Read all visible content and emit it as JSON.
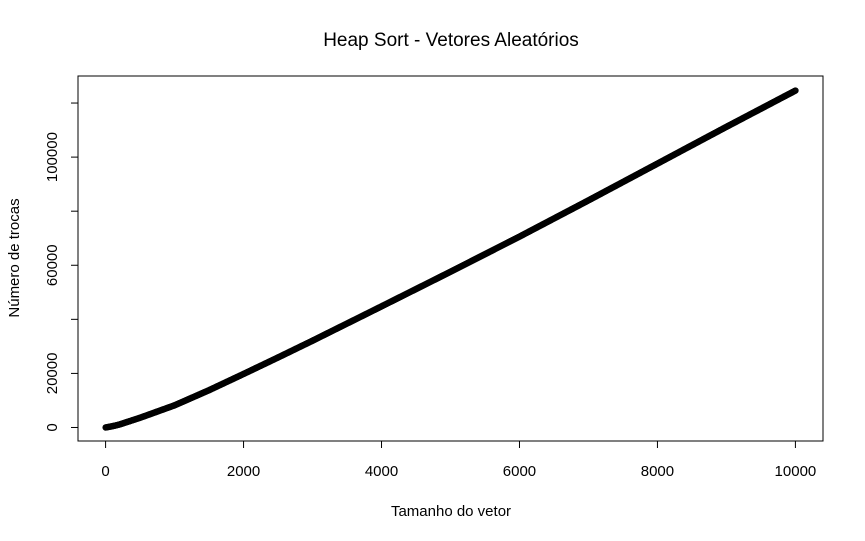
{
  "chart_data": {
    "type": "scatter",
    "title": "Heap Sort - Vetores Aleatórios",
    "xlabel": "Tamanho do vetor",
    "ylabel": "Número de trocas",
    "xlim": [
      -400,
      10400
    ],
    "ylim": [
      -5000,
      130000
    ],
    "xticks": [
      0,
      2000,
      4000,
      6000,
      8000,
      10000
    ],
    "yticks": [
      0,
      20000,
      40000,
      60000,
      80000,
      100000,
      120000
    ],
    "ytick_labels": [
      "0",
      "20000",
      "",
      "60000",
      "",
      "100000",
      ""
    ],
    "x_range": [
      1,
      10000
    ],
    "series": [
      {
        "marker": "open-circle",
        "color": "#000000",
        "x": [
          1,
          100,
          200,
          500,
          1000,
          1500,
          2000,
          2500,
          3000,
          4000,
          5000,
          6000,
          7000,
          8000,
          9000,
          10000
        ],
        "y": [
          0,
          480,
          1100,
          3600,
          8200,
          13800,
          19800,
          25900,
          32100,
          44800,
          57600,
          70600,
          84000,
          97600,
          111200,
          124600
        ]
      }
    ],
    "grid": false,
    "legend": "none"
  }
}
